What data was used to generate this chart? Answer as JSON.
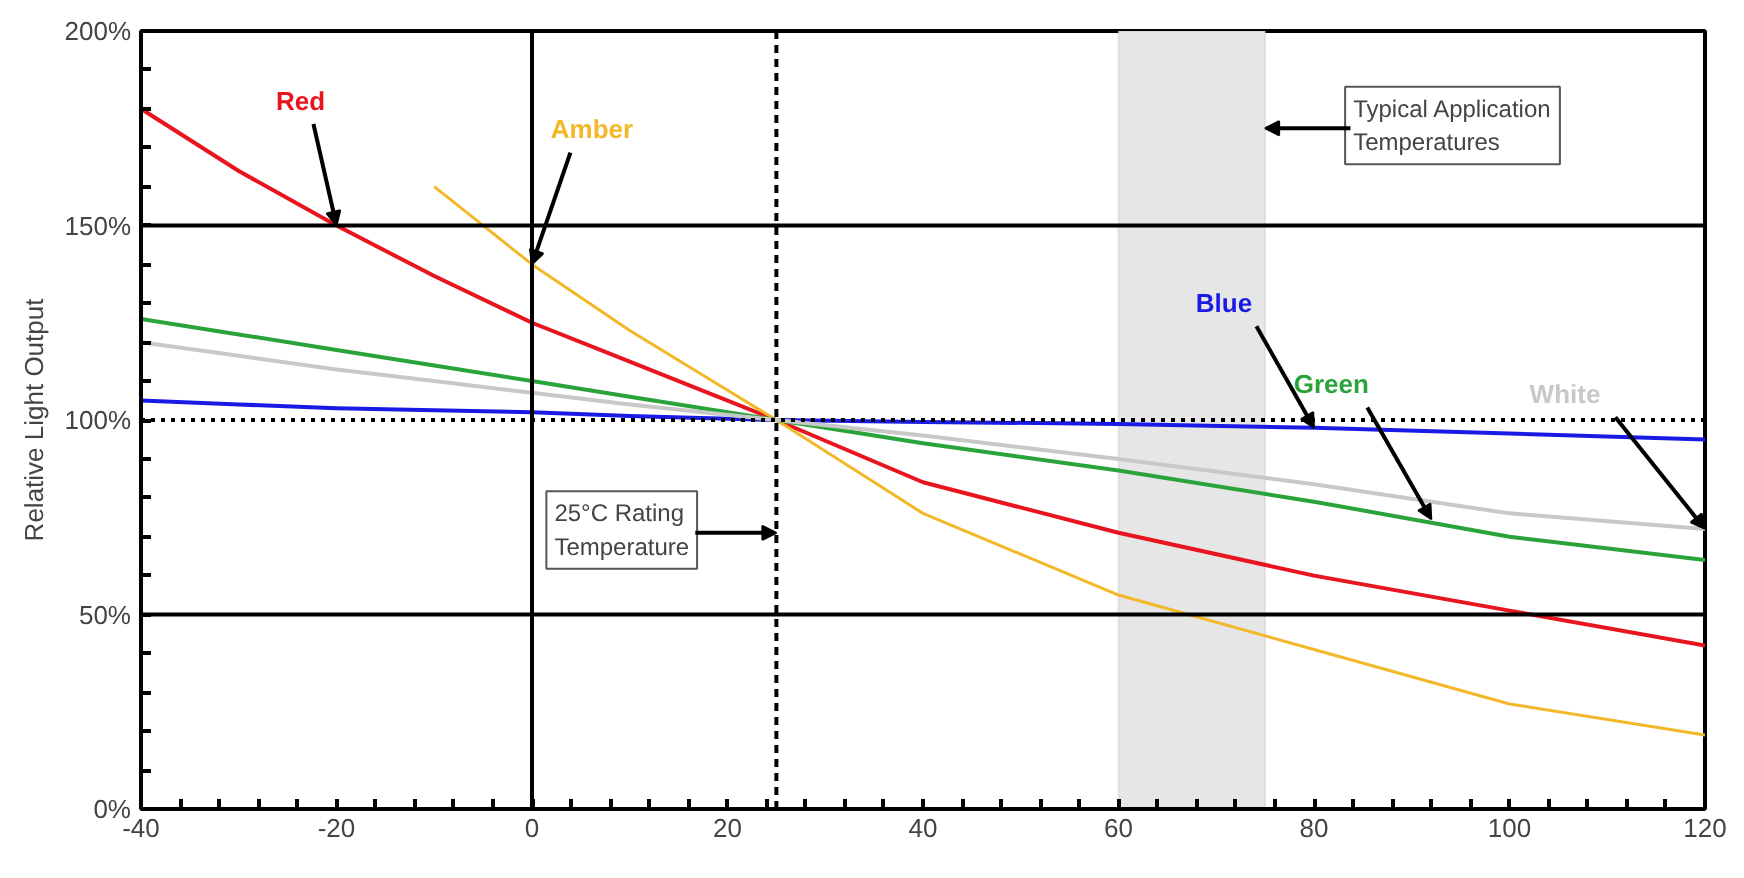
{
  "chart_data": {
    "type": "line",
    "ylabel": "Relative Light Output",
    "x": [
      -40,
      -30,
      -20,
      -10,
      0,
      10,
      25,
      40,
      60,
      80,
      100,
      120
    ],
    "series": [
      {
        "name": "Red",
        "color": "#e8141e",
        "values": [
          180,
          164,
          150,
          137,
          125,
          115,
          100,
          84,
          71,
          60,
          51,
          42
        ]
      },
      {
        "name": "Amber",
        "color": "#f2b827",
        "values": [
          null,
          null,
          null,
          160,
          140,
          123,
          100,
          76,
          55,
          41,
          27,
          19
        ]
      },
      {
        "name": "Blue",
        "color": "#1a1ae6",
        "values": [
          105,
          104,
          103,
          102.5,
          102,
          101,
          100,
          99.5,
          99,
          98,
          96.5,
          95
        ]
      },
      {
        "name": "Green",
        "color": "#2aa33a",
        "values": [
          126,
          122,
          118,
          114,
          110,
          106,
          100,
          94,
          87,
          79,
          70,
          64
        ]
      },
      {
        "name": "White",
        "color": "#c8c8c8",
        "values": [
          120,
          116.5,
          113,
          110,
          107,
          104,
          100,
          96,
          90,
          83.5,
          76,
          72
        ]
      }
    ],
    "xlim": [
      -40,
      120
    ],
    "xticks": [
      -40,
      -20,
      0,
      20,
      40,
      60,
      80,
      100,
      120
    ],
    "ylim": [
      0,
      200
    ],
    "yticks": [
      {
        "value": 0,
        "label": "0%"
      },
      {
        "value": 50,
        "label": "50%"
      },
      {
        "value": 100,
        "label": "100%"
      },
      {
        "value": 150,
        "label": "150%"
      },
      {
        "value": 200,
        "label": "200%"
      }
    ],
    "grid": false,
    "marker": "none",
    "line_style": "solid",
    "ref_lines": [
      {
        "axis": "y",
        "value": 50,
        "color": "#000000",
        "line_style": "solid"
      },
      {
        "axis": "y",
        "value": 100,
        "color": "#000000",
        "line_style": "dotted"
      },
      {
        "axis": "y",
        "value": 150,
        "color": "#000000",
        "line_style": "solid"
      },
      {
        "axis": "x",
        "value": 0,
        "color": "#000000",
        "line_style": "solid"
      },
      {
        "axis": "x",
        "value": 25,
        "color": "#000000",
        "line_style": "dashed"
      }
    ],
    "bands": [
      {
        "axis": "x",
        "from": 60,
        "to": 75,
        "color": "#e6e6e6"
      }
    ],
    "annotations": [
      {
        "text": "25°C Rating\nTemperature",
        "x": 25,
        "y": 71
      },
      {
        "text": "Typical Application\nTemperatures",
        "x": 75,
        "y": 175
      }
    ]
  }
}
